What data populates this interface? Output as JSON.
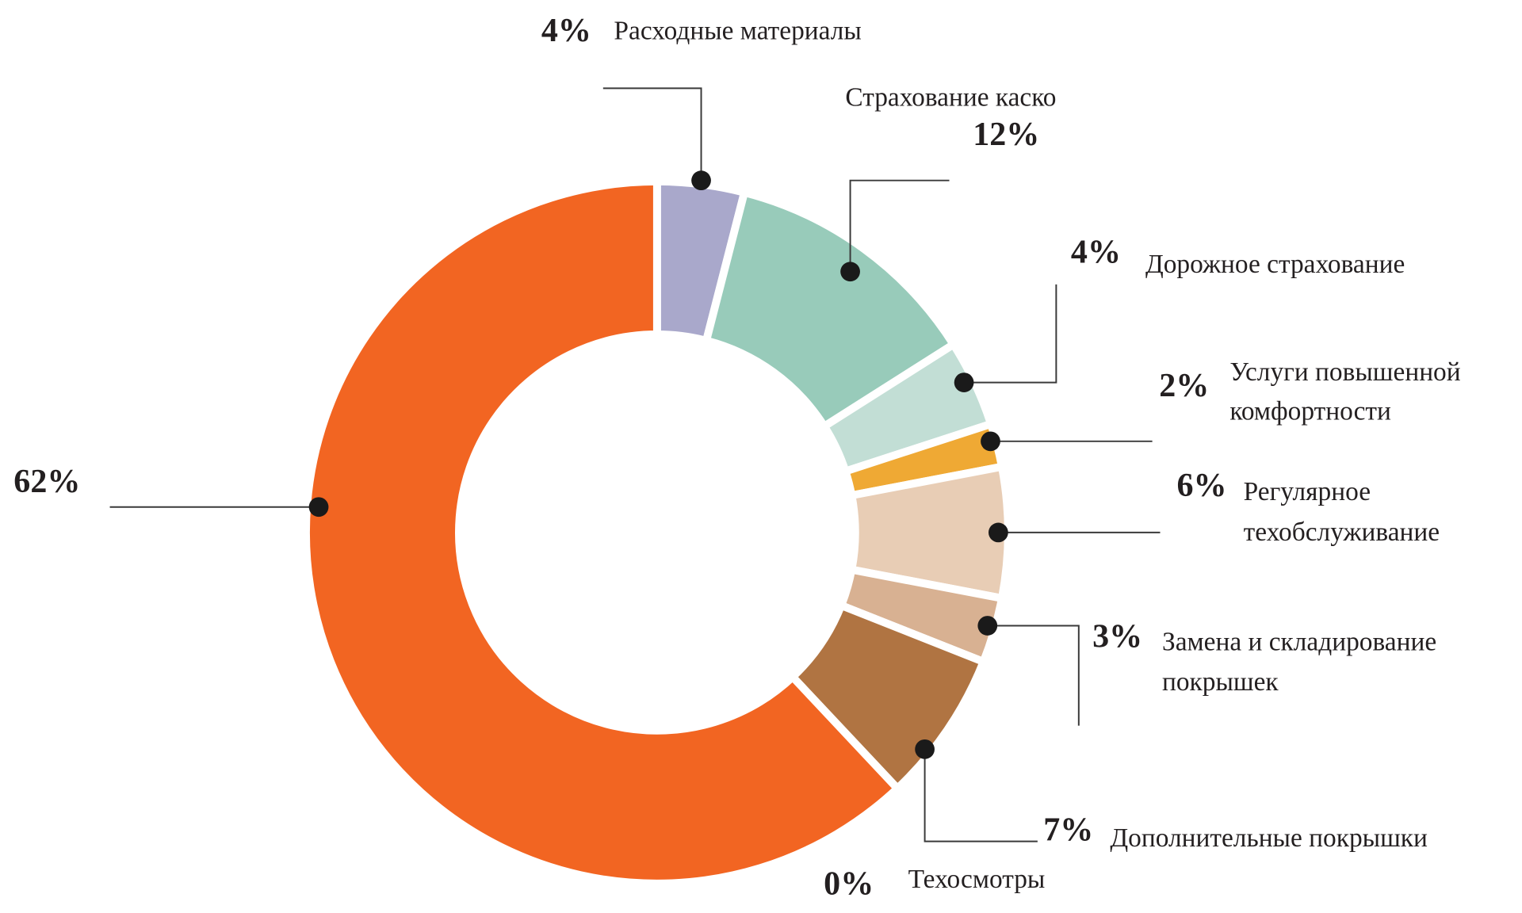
{
  "chart_data": {
    "type": "pie",
    "variant": "donut",
    "start": "top, clockwise",
    "legend": "none (callout labels)",
    "slices": [
      {
        "label": "Расходные материалы",
        "value": 4,
        "value_label": "4%",
        "color": "#A9A8CB"
      },
      {
        "label": "Страхование каско",
        "value": 12,
        "value_label": "12%",
        "color": "#98CBBA"
      },
      {
        "label": "Дорожное страхование",
        "value": 4,
        "value_label": "4%",
        "color": "#C2DED5"
      },
      {
        "label_lines": [
          "Услуги повышенной",
          "комфортности"
        ],
        "value": 2,
        "value_label": "2%",
        "color": "#EFA934"
      },
      {
        "label_lines": [
          "Регулярное",
          "техобслуживание"
        ],
        "value": 6,
        "value_label": "6%",
        "color": "#E8CDB5"
      },
      {
        "label_lines": [
          "Замена и складирование",
          "покрышек"
        ],
        "value": 3,
        "value_label": "3%",
        "color": "#D8B192"
      },
      {
        "label": "Дополнительные покрышки",
        "value": 7,
        "value_label": "7%",
        "color": "#B07442"
      },
      {
        "label": "Техосмотры",
        "value": 0,
        "value_label": "0%",
        "color": "#B07442"
      },
      {
        "label": "",
        "value": 62,
        "value_label": "62%",
        "color": "#F26522"
      }
    ]
  }
}
